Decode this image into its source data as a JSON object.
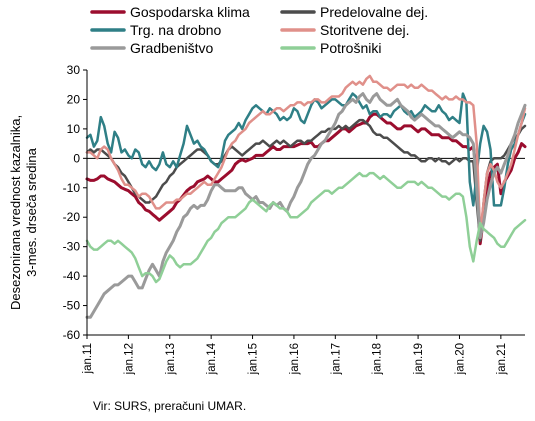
{
  "chart_data": {
    "type": "line",
    "ylabel": "Desezonirana vrednost kazalnika,\n3-mes. drseča sredina",
    "ylim": [
      -60,
      30
    ],
    "yticks": [
      -60,
      -50,
      -40,
      -30,
      -20,
      -10,
      0,
      10,
      20,
      30
    ],
    "xticks": [
      "jan.11",
      "jan.12",
      "jan.13",
      "jan.14",
      "jan.15",
      "jan.16",
      "jan.17",
      "jan.18",
      "jan.19",
      "jan.20",
      "jan.21"
    ],
    "x_start": "2011-01",
    "x_end": "2021-08",
    "legend_position": "top",
    "series": [
      {
        "name": "Gospodarska klima",
        "color": "#9b0d2e",
        "width": 3,
        "values": [
          -7,
          -7.5,
          -7.5,
          -7,
          -6,
          -6,
          -7,
          -7.5,
          -8,
          -9,
          -10,
          -10.5,
          -11,
          -12,
          -13,
          -15,
          -16,
          -17.5,
          -18,
          -19,
          -20,
          -21,
          -20,
          -19,
          -18,
          -17,
          -15,
          -14,
          -12.5,
          -11,
          -10,
          -9.5,
          -8,
          -7.5,
          -7,
          -6,
          -7,
          -8,
          -8,
          -7,
          -6,
          -5,
          -4,
          -2,
          -1,
          -0.5,
          -1,
          -0.5,
          0,
          1,
          1,
          1,
          2,
          3,
          4,
          3,
          3,
          4,
          4,
          4,
          4,
          4.5,
          5,
          5,
          5,
          5.5,
          4,
          4,
          5,
          6,
          6,
          7,
          8,
          9,
          10,
          10,
          9,
          10,
          11,
          11.5,
          12,
          12,
          14,
          15,
          15,
          14,
          13,
          12,
          12,
          11,
          10,
          10,
          11,
          11,
          11,
          10,
          9,
          10,
          10,
          9,
          8,
          8,
          8,
          7,
          7,
          7,
          6,
          6,
          5,
          4,
          4,
          3,
          4,
          -5,
          -29,
          -20,
          -10,
          -5,
          -3,
          -2,
          -12,
          -8,
          -6,
          -4,
          0,
          2,
          5,
          4
        ]
      },
      {
        "name": "Predelovalne dej.",
        "color": "#4c4c4c",
        "width": 2.5,
        "values": [
          2,
          3,
          2,
          3,
          3,
          2,
          1,
          0,
          -2,
          -3,
          -5,
          -6,
          -8,
          -10,
          -12,
          -13,
          -14,
          -15,
          -15,
          -14,
          -13,
          -11,
          -9,
          -8,
          -6,
          -5,
          -3,
          -2,
          -1,
          0,
          1,
          2,
          3,
          3,
          2,
          1,
          -1,
          -2,
          -2,
          -1,
          1,
          3,
          4,
          3,
          2,
          1,
          2,
          3,
          4,
          5,
          5,
          6,
          5,
          4,
          5,
          6,
          5,
          6,
          5,
          4,
          5,
          6,
          6,
          5,
          6,
          6,
          7,
          8,
          9,
          9,
          10,
          10,
          10,
          11,
          10,
          11,
          10,
          11,
          12,
          13,
          13,
          12,
          11,
          9,
          8,
          8,
          7,
          7,
          6,
          5,
          4,
          3,
          2,
          2,
          1,
          1,
          0,
          -1,
          -1,
          0,
          0,
          -1,
          0,
          -1,
          -1,
          -2,
          -1,
          0,
          -1,
          0,
          0,
          -1,
          -1,
          -15,
          -28,
          -15,
          -5,
          -1,
          0,
          0,
          0,
          1,
          3,
          5,
          7,
          8,
          10,
          11
        ]
      },
      {
        "name": "Trg. na drobno",
        "color": "#2f7f86",
        "width": 2.5,
        "values": [
          7,
          8,
          4,
          6,
          14,
          11,
          5,
          2,
          9,
          7,
          2,
          3,
          1,
          0,
          3,
          2,
          -2,
          -3,
          -1,
          -3,
          -4,
          -2,
          2,
          -2,
          -3,
          -1,
          -3,
          1,
          5,
          11,
          8,
          5,
          6,
          4,
          3,
          1,
          -1,
          -2,
          -3,
          0,
          6,
          8,
          9,
          10,
          12,
          10,
          13,
          15,
          17,
          18,
          17,
          16,
          15,
          17,
          16,
          15,
          13,
          14,
          13,
          14,
          17,
          16,
          13,
          12,
          15,
          18,
          20,
          19,
          17,
          18,
          19,
          20,
          20,
          19,
          18,
          18,
          20,
          22,
          21,
          19,
          17,
          18,
          15,
          16,
          16,
          14,
          15,
          15,
          14,
          16,
          17,
          18,
          16,
          15,
          16,
          14,
          15,
          16,
          18,
          17,
          16,
          16,
          18,
          16,
          15,
          13,
          14,
          13,
          12,
          22,
          19,
          -8,
          -16,
          -5,
          5,
          11,
          9,
          3,
          -16,
          -16,
          -16,
          -10,
          -2,
          3,
          5,
          8,
          12,
          15
        ]
      },
      {
        "name": "Storitvene dej.",
        "color": "#e0908a",
        "width": 2.5,
        "values": [
          2,
          2,
          1,
          0,
          3,
          4,
          3,
          0,
          -2,
          -4,
          -7,
          -9,
          -9,
          -10,
          -11,
          -13,
          -12,
          -12,
          -13,
          -15,
          -17,
          -17,
          -16,
          -15,
          -15,
          -15,
          -14,
          -14,
          -13,
          -12,
          -12,
          -11,
          -10,
          -9,
          -8,
          -9,
          -9,
          -7,
          -5,
          -3,
          0,
          3,
          5,
          6,
          8,
          9,
          10,
          12,
          13,
          14,
          15,
          16,
          15,
          15,
          16,
          17,
          17,
          16,
          17,
          18,
          18,
          19,
          19,
          18,
          19,
          19,
          20,
          20,
          19,
          19,
          20,
          21,
          21,
          21,
          22,
          24,
          25,
          26,
          25,
          26,
          25,
          27,
          28,
          26,
          26,
          25,
          24,
          24,
          23,
          24,
          25,
          25,
          25,
          24,
          25,
          24,
          24,
          25,
          24,
          23,
          23,
          22,
          21,
          20,
          21,
          20,
          20,
          21,
          20,
          20,
          19,
          19,
          18,
          5,
          -26,
          -15,
          -5,
          -2,
          -4,
          -8,
          -10,
          -8,
          -5,
          -2,
          3,
          8,
          12,
          17
        ]
      },
      {
        "name": "Gradbeništvo",
        "color": "#9a9a9a",
        "width": 3,
        "values": [
          -54,
          -54,
          -52,
          -50,
          -48,
          -46,
          -45,
          -44,
          -43,
          -43,
          -42,
          -41,
          -40,
          -40,
          -42,
          -44,
          -44,
          -41,
          -38,
          -36,
          -38,
          -40,
          -35,
          -32,
          -30,
          -28,
          -25,
          -23,
          -20,
          -19,
          -17,
          -16,
          -17,
          -16,
          -16,
          -14,
          -11,
          -9,
          -9,
          -10,
          -11,
          -11,
          -11,
          -11,
          -10,
          -10,
          -12,
          -13,
          -14,
          -13,
          -15,
          -15,
          -16,
          -17,
          -15,
          -16,
          -15,
          -17,
          -18,
          -15,
          -13,
          -10,
          -8,
          -5,
          -2,
          0,
          1,
          3,
          5,
          6,
          8,
          10,
          12,
          15,
          16,
          18,
          19,
          20,
          19,
          21,
          22,
          20,
          19,
          21,
          22,
          20,
          19,
          18,
          18,
          19,
          20,
          18,
          17,
          16,
          14,
          13,
          14,
          15,
          14,
          13,
          12,
          11,
          11,
          10,
          9,
          8,
          7,
          8,
          9,
          8,
          8,
          7,
          5,
          -10,
          -27,
          -22,
          -14,
          -9,
          -5,
          -3,
          -5,
          -2,
          1,
          5,
          8,
          12,
          15,
          18
        ]
      },
      {
        "name": "Potrošniki",
        "color": "#8fcf97",
        "width": 2.5,
        "values": [
          -28,
          -30,
          -31,
          -31,
          -30,
          -29,
          -28,
          -28,
          -29,
          -28,
          -29,
          -30,
          -31,
          -32,
          -34,
          -37,
          -40,
          -39,
          -39,
          -40,
          -42,
          -41,
          -38,
          -35,
          -33,
          -34,
          -36,
          -37,
          -36,
          -36,
          -36,
          -35,
          -34,
          -32,
          -30,
          -28,
          -27,
          -25,
          -24,
          -22,
          -21,
          -20,
          -20,
          -20,
          -19,
          -18,
          -17,
          -15,
          -14,
          -15,
          -16,
          -17,
          -18,
          -16,
          -15,
          -16,
          -17,
          -17,
          -18,
          -20,
          -20,
          -20,
          -19,
          -18,
          -17,
          -15,
          -14,
          -13,
          -12,
          -11,
          -11,
          -12,
          -11,
          -10,
          -10,
          -9,
          -8,
          -7,
          -6,
          -5,
          -6,
          -6,
          -5,
          -5,
          -6,
          -7,
          -6,
          -7,
          -8,
          -9,
          -10,
          -10,
          -9,
          -8,
          -8,
          -8,
          -9,
          -8,
          -9,
          -10,
          -10,
          -11,
          -12,
          -13,
          -13,
          -14,
          -13,
          -12,
          -12,
          -13,
          -20,
          -30,
          -35,
          -28,
          -22,
          -24,
          -25,
          -26,
          -27,
          -29,
          -30,
          -30,
          -28,
          -26,
          -24,
          -23,
          -22,
          -21
        ]
      }
    ]
  },
  "source_note": "Vir: SURS, preračuni UMAR."
}
